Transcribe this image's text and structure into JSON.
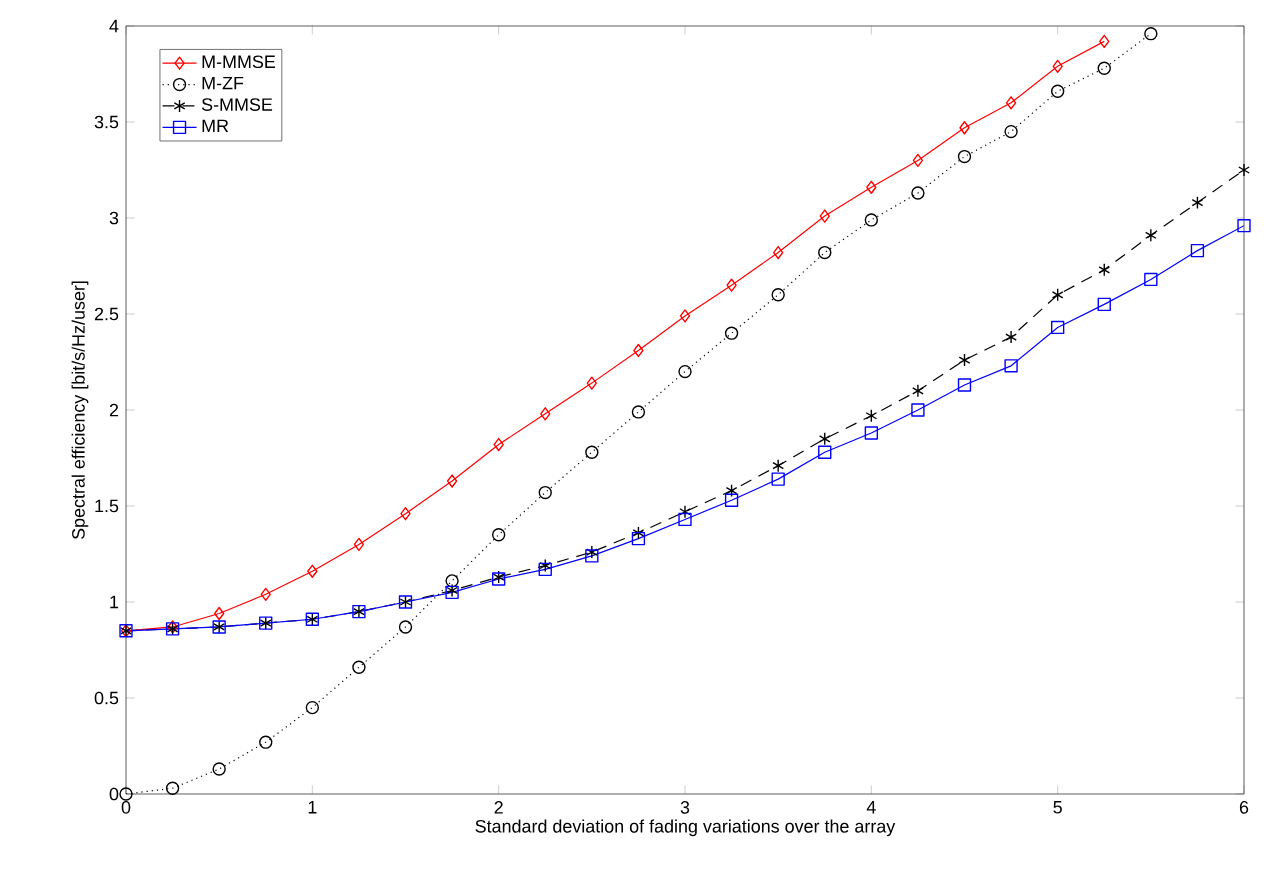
{
  "chart_data": {
    "type": "line",
    "xlabel": "Standard deviation of fading variations over the array",
    "ylabel": "Spectral efficiency [bit/s/Hz/user]",
    "x": [
      0,
      0.25,
      0.5,
      0.75,
      1,
      1.25,
      1.5,
      1.75,
      2,
      2.25,
      2.5,
      2.75,
      3,
      3.25,
      3.5,
      3.75,
      4,
      4.25,
      4.5,
      4.75,
      5,
      5.25,
      5.5,
      5.75,
      6
    ],
    "series": [
      {
        "name": "M-MMSE",
        "color": "#ff0000",
        "marker": "diamond",
        "line_style": "solid",
        "values": [
          0.85,
          0.87,
          0.94,
          1.04,
          1.16,
          1.3,
          1.46,
          1.63,
          1.82,
          1.98,
          2.14,
          2.31,
          2.49,
          2.65,
          2.82,
          3.01,
          3.16,
          3.3,
          3.47,
          3.6,
          3.79,
          3.92,
          null,
          null,
          null
        ]
      },
      {
        "name": "M-ZF",
        "color": "#000000",
        "marker": "circle",
        "line_style": "dotted",
        "values": [
          0,
          0.03,
          0.13,
          0.27,
          0.45,
          0.66,
          0.87,
          1.11,
          1.35,
          1.57,
          1.78,
          1.99,
          2.2,
          2.4,
          2.6,
          2.82,
          2.99,
          3.13,
          3.32,
          3.45,
          3.66,
          3.78,
          3.96,
          null,
          null
        ]
      },
      {
        "name": "S-MMSE",
        "color": "#000000",
        "marker": "cross",
        "line_style": "dashed",
        "values": [
          0.85,
          0.86,
          0.87,
          0.89,
          0.91,
          0.95,
          1.0,
          1.06,
          1.13,
          1.19,
          1.26,
          1.36,
          1.47,
          1.58,
          1.71,
          1.85,
          1.97,
          2.1,
          2.26,
          2.38,
          2.6,
          2.73,
          2.91,
          3.08,
          3.25
        ]
      },
      {
        "name": "MR",
        "color": "#0000ff",
        "marker": "square",
        "line_style": "solid",
        "values": [
          0.85,
          0.86,
          0.87,
          0.89,
          0.91,
          0.95,
          1.0,
          1.05,
          1.12,
          1.17,
          1.24,
          1.33,
          1.43,
          1.53,
          1.64,
          1.78,
          1.88,
          2.0,
          2.13,
          2.23,
          2.43,
          2.55,
          2.68,
          2.83,
          2.96
        ]
      }
    ],
    "xlim": [
      0,
      6
    ],
    "ylim": [
      0,
      4
    ],
    "xticks": [
      0,
      1,
      2,
      3,
      4,
      5,
      6
    ],
    "yticks": [
      0,
      0.5,
      1,
      1.5,
      2,
      2.5,
      3,
      3.5,
      4
    ],
    "grid": false,
    "legend": "top left"
  }
}
